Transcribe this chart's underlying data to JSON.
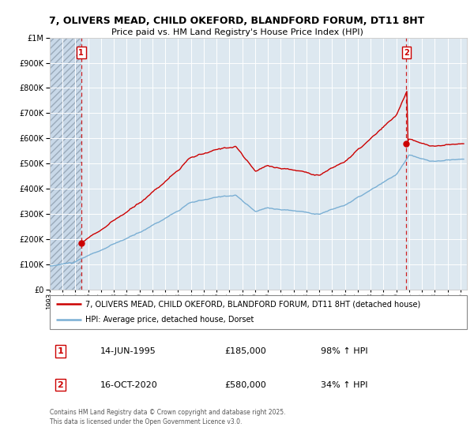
{
  "title_line1": "7, OLIVERS MEAD, CHILD OKEFORD, BLANDFORD FORUM, DT11 8HT",
  "title_line2": "Price paid vs. HM Land Registry's House Price Index (HPI)",
  "legend_line1": "7, OLIVERS MEAD, CHILD OKEFORD, BLANDFORD FORUM, DT11 8HT (detached house)",
  "legend_line2": "HPI: Average price, detached house, Dorset",
  "footer": "Contains HM Land Registry data © Crown copyright and database right 2025.\nThis data is licensed under the Open Government Licence v3.0.",
  "annotation1_date": "14-JUN-1995",
  "annotation1_price": "£185,000",
  "annotation1_hpi": "98% ↑ HPI",
  "annotation2_date": "16-OCT-2020",
  "annotation2_price": "£580,000",
  "annotation2_hpi": "34% ↑ HPI",
  "red_color": "#cc0000",
  "blue_color": "#7aafd4",
  "background_plot": "#dde8f0",
  "hatch_color": "#b8c8d8",
  "ylim": [
    0,
    1000000
  ],
  "xmin": 1993.0,
  "xmax": 2025.5,
  "sale1_x": 1995.45,
  "sale1_y": 185000,
  "sale2_x": 2020.79,
  "sale2_y": 580000
}
